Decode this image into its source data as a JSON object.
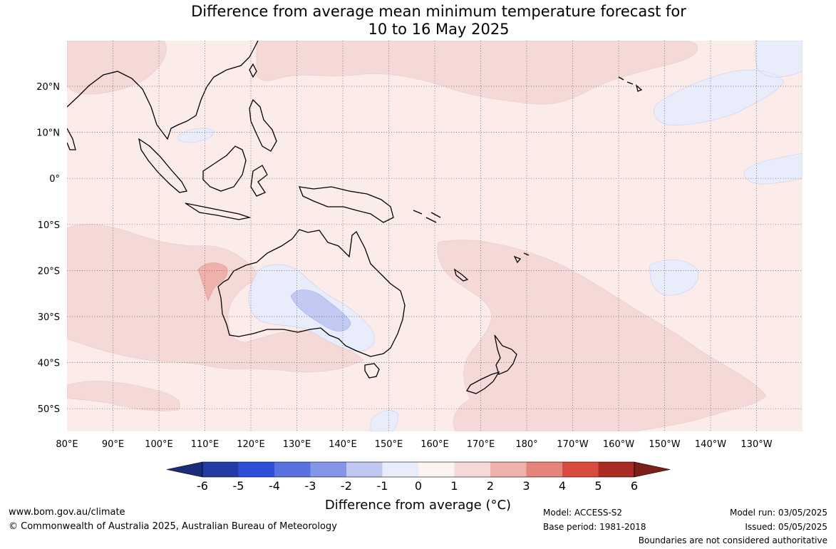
{
  "title": {
    "line1": "Difference from average mean minimum temperature forecast for",
    "line2": "10 to 16 May 2025"
  },
  "map": {
    "lat_labels": [
      "20°N",
      "10°N",
      "0°",
      "10°S",
      "20°S",
      "30°S",
      "40°S",
      "50°S"
    ],
    "lon_labels": [
      "80°E",
      "90°E",
      "100°E",
      "110°E",
      "120°E",
      "130°E",
      "140°E",
      "150°E",
      "160°E",
      "170°E",
      "180°",
      "170°W",
      "160°W",
      "150°W",
      "140°W",
      "130°W"
    ],
    "colors": {
      "ocean_bg": "#fbebe9",
      "warm_1_2": "#f5d9d7",
      "warm_2_3": "#eeb1ac",
      "cool_0_m1": "#e9ecfb",
      "cool_m1_m2": "#c2c9f3",
      "coast": "#000000",
      "grid": "#555555"
    }
  },
  "colorbar": {
    "title": "Difference from average (°C)",
    "ticks": [
      "-6",
      "-5",
      "-4",
      "-3",
      "-2",
      "-1",
      "0",
      "1",
      "2",
      "3",
      "4",
      "5",
      "6"
    ],
    "colors": [
      "#233ba5",
      "#2f4fd8",
      "#5a72e0",
      "#8396e7",
      "#c0c8f2",
      "#e9ecfb",
      "#fdf3f1",
      "#f6d9d7",
      "#eeb1ac",
      "#e5847b",
      "#d94b3e",
      "#a92b24"
    ],
    "end_colors": {
      "low": "#1c2d78",
      "high": "#7e1f1a"
    }
  },
  "footer": {
    "website": "www.bom.gov.au/climate",
    "copyright": "© Commonwealth of Australia 2025, Australian Bureau of Meteorology",
    "model": "Model: ACCESS-S2",
    "base_period": "Base period: 1981-2018",
    "model_run": "Model run: 03/05/2025",
    "issued": "Issued: 05/05/2025",
    "boundaries": "Boundaries are not considered authoritative"
  }
}
